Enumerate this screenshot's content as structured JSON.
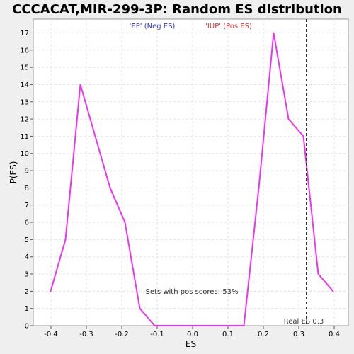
{
  "chart_data": {
    "type": "line",
    "title": "CCCACAT,MIR-299-3P: Random ES distribution",
    "xlabel": "ES",
    "ylabel": "P(ES)",
    "xlim": [
      -0.45,
      0.44
    ],
    "ylim": [
      0,
      17.8
    ],
    "x_ticks": [
      -0.4,
      -0.3,
      -0.2,
      -0.1,
      0.0,
      0.1,
      0.2,
      0.3,
      0.4
    ],
    "x_tick_labels": [
      "-0.4",
      "-0.3",
      "-0.2",
      "-0.1",
      "0.0",
      "0.1",
      "0.2",
      "0.3",
      "0.4"
    ],
    "y_ticks": [
      0,
      1,
      2,
      3,
      4,
      5,
      6,
      7,
      8,
      9,
      10,
      11,
      12,
      13,
      14,
      15,
      16,
      17
    ],
    "y_tick_labels": [
      "0",
      "1",
      "2",
      "3",
      "4",
      "5",
      "6",
      "7",
      "8",
      "9",
      "10",
      "11",
      "12",
      "13",
      "14",
      "15",
      "16",
      "17"
    ],
    "grid": true,
    "legend_position": "top-center",
    "legend": [
      {
        "label": "'EP' (Neg ES)",
        "color": "#3333cc"
      },
      {
        "label": "'IUP' (Pos ES)",
        "color": "#e03030"
      }
    ],
    "series": [
      {
        "color": "#ee33ee",
        "x": [
          -0.401,
          -0.359,
          -0.317,
          -0.275,
          -0.233,
          -0.191,
          -0.149,
          -0.107,
          -0.065,
          -0.023,
          0.019,
          0.061,
          0.103,
          0.145,
          0.187,
          0.229,
          0.271,
          0.313,
          0.355,
          0.397
        ],
        "y": [
          2,
          5,
          14,
          11,
          8,
          6,
          1,
          0,
          0,
          0,
          0,
          0,
          0,
          0,
          8,
          17,
          12,
          11,
          3,
          2
        ]
      }
    ],
    "real_es": {
      "value": 0.322,
      "label": "Real ES 0.3",
      "color": "#333333"
    },
    "annotation": "Sets with pos scores: 53%"
  }
}
